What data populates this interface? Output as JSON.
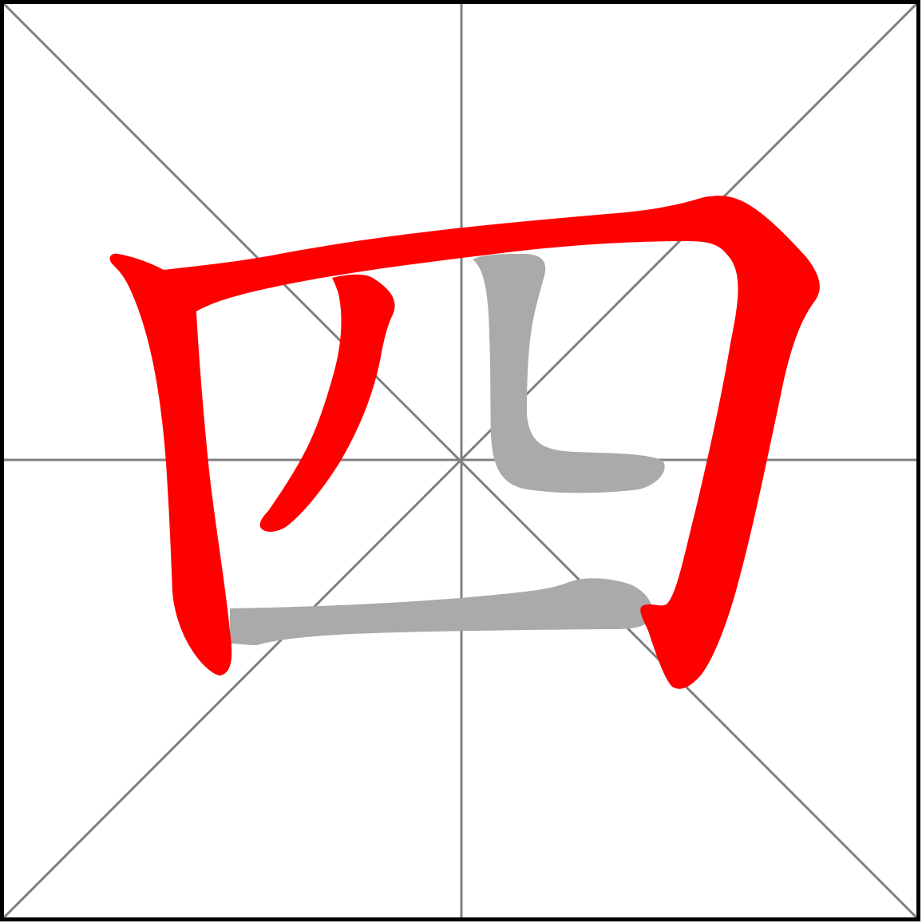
{
  "character": "四",
  "colors": {
    "background": "#ffffff",
    "border": "#000000",
    "guide_lines": "#808080",
    "completed_strokes": "#ff0000",
    "pending_strokes": "#aaaaaa"
  },
  "grid": {
    "type": "米字格",
    "guides": [
      "vertical-center",
      "horizontal-center",
      "diagonal-main",
      "diagonal-anti"
    ]
  },
  "strokes": [
    {
      "order": 1,
      "name": "竖",
      "state": "completed"
    },
    {
      "order": 2,
      "name": "横折",
      "state": "completed"
    },
    {
      "order": 3,
      "name": "撇",
      "state": "completed"
    },
    {
      "order": 4,
      "name": "竖弯",
      "state": "pending"
    },
    {
      "order": 5,
      "name": "横",
      "state": "pending"
    }
  ],
  "progress": {
    "completed": 3,
    "total": 5
  }
}
